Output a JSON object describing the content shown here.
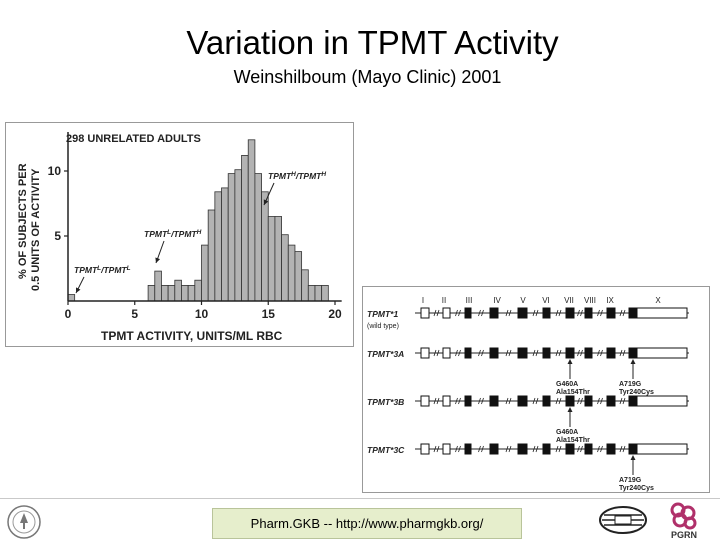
{
  "slide": {
    "title": "Variation in TPMT Activity",
    "subtitle": "Weinshilboum (Mayo Clinic) 2001",
    "footer": "Pharm.GKB -- http://www.pharmgkb.org/",
    "logos": {
      "left": "stanford-seal",
      "right_1": "pharmgkb-logo",
      "right_2": "pgrn-logo",
      "pgrn_text": "PGRN"
    }
  },
  "chart_data": [
    {
      "type": "bar",
      "title": "298 UNRELATED ADULTS",
      "xlabel": "TPMT ACTIVITY, UNITS/ML RBC",
      "ylabel": "% OF SUBJECTS PER 0.5 UNITS OF ACTIVITY",
      "ylabel_lines": [
        "% OF SUBJECTS PER",
        "0.5 UNITS OF ACTIVITY"
      ],
      "xlim": [
        0,
        20.5
      ],
      "ylim": [
        0,
        13
      ],
      "xticks": [
        0,
        5,
        10,
        15,
        20
      ],
      "yticks": [
        5,
        10
      ],
      "bin_width": 0.5,
      "bins_start": [
        0,
        6,
        6.5,
        7,
        7.5,
        8,
        8.5,
        9,
        9.5,
        10,
        10.5,
        11,
        11.5,
        12,
        12.5,
        13,
        13.5,
        14,
        14.5,
        15,
        15.5,
        16,
        16.5,
        17,
        17.5,
        18,
        18.5,
        19
      ],
      "values": [
        0.5,
        1.2,
        2.3,
        1.2,
        1.2,
        1.6,
        1.2,
        1.2,
        1.6,
        4.3,
        7.0,
        8.4,
        8.7,
        9.8,
        10.1,
        11.2,
        12.4,
        9.8,
        8.4,
        6.5,
        6.5,
        5.1,
        4.3,
        3.8,
        2.4,
        1.2,
        1.2,
        1.2
      ],
      "annotations": [
        {
          "label": "TPMT",
          "sup": "L",
          "mid": "/TPMT",
          "sup2": "L"
        },
        {
          "label": "TPMT",
          "sup": "L",
          "mid": "/TPMT",
          "sup2": "H"
        },
        {
          "label": "TPMT",
          "sup": "H",
          "mid": "/TPMT",
          "sup2": "H"
        }
      ]
    }
  ],
  "gene_diagram": {
    "exons": [
      "I",
      "II",
      "III",
      "IV",
      "V",
      "VI",
      "VII",
      "VIII",
      "IX",
      "X"
    ],
    "alleles": [
      {
        "name": "TPMT*1",
        "note": "(wild type)",
        "mutant": []
      },
      {
        "name": "TPMT*3A",
        "note": "",
        "mutant": [
          6,
          9
        ]
      },
      {
        "name": "TPMT*3B",
        "note": "",
        "mutant": [
          6
        ]
      },
      {
        "name": "TPMT*3C",
        "note": "",
        "mutant": [
          9
        ]
      }
    ],
    "mutation_labels": [
      {
        "row": 1,
        "exon": 6,
        "lines": [
          "G460A",
          "Ala154Thr"
        ]
      },
      {
        "row": 1,
        "exon": 9,
        "lines": [
          "A719G",
          "Tyr240Cys"
        ]
      },
      {
        "row": 2,
        "exon": 6,
        "lines": [
          "G460A",
          "Ala154Thr"
        ]
      },
      {
        "row": 3,
        "exon": 9,
        "lines": [
          "A719G",
          "Tyr240Cys"
        ]
      }
    ]
  }
}
